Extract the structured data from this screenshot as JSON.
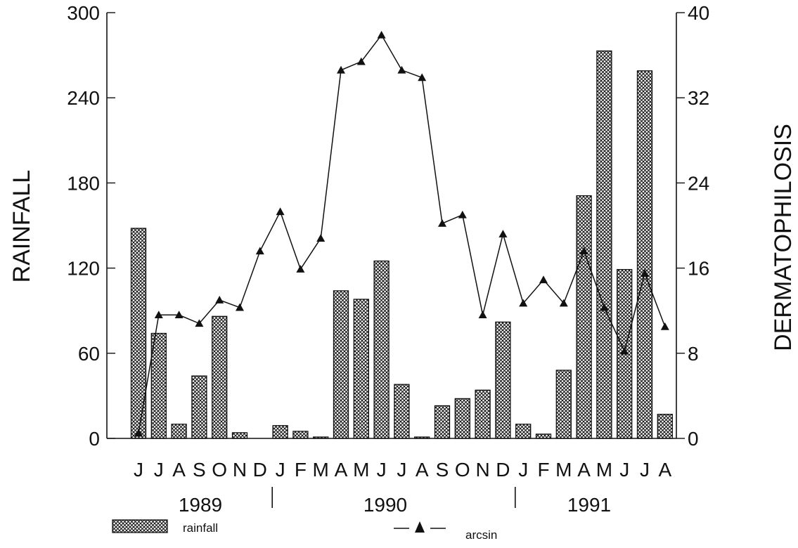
{
  "chart_data": {
    "type": "bar",
    "combo": "bar+line",
    "title": "",
    "ylabel_left": "RAINFALL",
    "ylabel_right": "DERMATOPHILOSIS",
    "ylim_left": [
      0,
      300
    ],
    "ylim_right": [
      0,
      40
    ],
    "yticks_left": [
      "0",
      "60",
      "120",
      "180",
      "240",
      "300"
    ],
    "yticks_right": [
      "0",
      "8",
      "16",
      "24",
      "32",
      "40"
    ],
    "grid": false,
    "categories": [
      "J",
      "J",
      "A",
      "S",
      "O",
      "N",
      "D",
      "J",
      "F",
      "M",
      "A",
      "M",
      "J",
      "J",
      "A",
      "S",
      "O",
      "N",
      "D",
      "J",
      "F",
      "M",
      "A",
      "M",
      "J",
      "J",
      "A"
    ],
    "year_labels": [
      "1989",
      "1990",
      "1991"
    ],
    "series": [
      {
        "name": "rainfall",
        "axis": "left",
        "render": "hatched-bar",
        "values": [
          148,
          74,
          10,
          44,
          86,
          4,
          0,
          9,
          5,
          1,
          104,
          98,
          125,
          38,
          1,
          23,
          28,
          34,
          82,
          10,
          3,
          48,
          171,
          273,
          119,
          259,
          17
        ]
      },
      {
        "name": "arcsin",
        "axis": "right",
        "render": "line-triangle",
        "values": [
          0.5,
          11.6,
          11.6,
          10.8,
          13,
          12.3,
          17.6,
          21.3,
          15.9,
          18.8,
          34.6,
          35.4,
          37.9,
          34.6,
          33.9,
          20.2,
          21,
          11.6,
          19.2,
          12.7,
          14.9,
          12.7,
          17.6,
          12.3,
          8.2,
          15.5,
          10.5
        ]
      }
    ],
    "legend_position": "bottom"
  }
}
